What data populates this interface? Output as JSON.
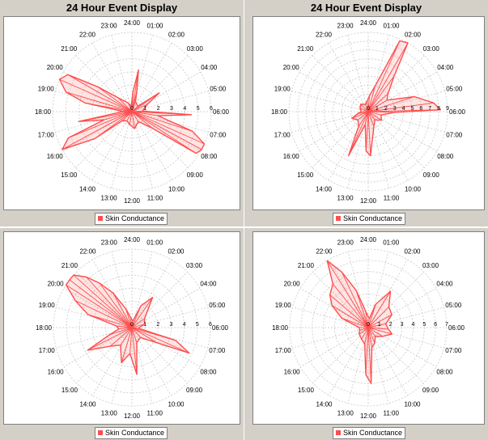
{
  "colors": {
    "series": "#ff4d4d",
    "grid": "#c8c8c8",
    "panel_bg": "#d4d0c8"
  },
  "chart_data": [
    {
      "type": "polar-line",
      "title": "24 Hour Event Display",
      "legend": "bottom",
      "series": [
        {
          "name": "Skin Conductance"
        }
      ],
      "angular_labels": [
        "24:00",
        "01:00",
        "02:00",
        "03:00",
        "04:00",
        "05:00",
        "06:00",
        "07:00",
        "08:00",
        "09:00",
        "10:00",
        "11:00",
        "12:00",
        "13:00",
        "14:00",
        "15:00",
        "16:00",
        "17:00",
        "18:00",
        "19:00",
        "20:00",
        "21:00",
        "22:00",
        "23:00"
      ],
      "radial_labels": [
        "0",
        "1",
        "2",
        "3",
        "4",
        "5",
        "6"
      ],
      "rmax": 6,
      "points": [
        [
          0.2,
          1.5
        ],
        [
          0.6,
          3.2
        ],
        [
          0.9,
          1.6
        ],
        [
          1.3,
          0.8
        ],
        [
          3.2,
          0.6
        ],
        [
          3.7,
          2.5
        ],
        [
          4.3,
          1.3
        ],
        [
          5.8,
          0.8
        ],
        [
          6.2,
          4.5
        ],
        [
          6.6,
          2.0
        ],
        [
          7.2,
          4.8
        ],
        [
          7.6,
          6.2
        ],
        [
          7.9,
          6.4
        ],
        [
          8.2,
          5.8
        ],
        [
          8.6,
          2.0
        ],
        [
          9.8,
          0.9
        ],
        [
          11.4,
          1.3
        ],
        [
          12.6,
          1.0
        ],
        [
          13.9,
          0.8
        ],
        [
          15.1,
          1.0
        ],
        [
          15.6,
          3.5
        ],
        [
          16.1,
          7.0
        ],
        [
          16.5,
          5.2
        ],
        [
          16.9,
          2.2
        ],
        [
          17.3,
          4.1
        ],
        [
          17.8,
          0.9
        ],
        [
          18.2,
          0.8
        ],
        [
          18.7,
          3.6
        ],
        [
          19.1,
          5.2
        ],
        [
          19.6,
          6.2
        ],
        [
          20.0,
          5.6
        ],
        [
          20.4,
          3.2
        ],
        [
          21.0,
          1.5
        ],
        [
          22.5,
          0.7
        ],
        [
          23.5,
          0.4
        ]
      ]
    },
    {
      "type": "polar-line",
      "title": "24 Hour Event Display",
      "legend": "bottom",
      "series": [
        {
          "name": "Skin Conductance"
        }
      ],
      "angular_labels": [
        "24:00",
        "01:00",
        "02:00",
        "03:00",
        "04:00",
        "05:00",
        "06:00",
        "07:00",
        "08:00",
        "09:00",
        "10:00",
        "11:00",
        "12:00",
        "13:00",
        "14:00",
        "15:00",
        "16:00",
        "17:00",
        "18:00",
        "19:00",
        "20:00",
        "21:00",
        "22:00",
        "23:00"
      ],
      "radial_labels": [
        "0",
        "1",
        "2",
        "3",
        "4",
        "5",
        "6",
        "7",
        "8",
        "9"
      ],
      "rmax": 9,
      "points": [
        [
          0.3,
          1.8
        ],
        [
          1.0,
          3.0
        ],
        [
          1.6,
          8.8
        ],
        [
          2.0,
          9.2
        ],
        [
          2.4,
          5.0
        ],
        [
          3.2,
          3.0
        ],
        [
          3.9,
          2.5
        ],
        [
          4.8,
          5.5
        ],
        [
          5.5,
          7.5
        ],
        [
          5.9,
          8.2
        ],
        [
          6.1,
          3.0
        ],
        [
          7.0,
          1.5
        ],
        [
          8.2,
          1.8
        ],
        [
          9.4,
          1.2
        ],
        [
          10.6,
          1.8
        ],
        [
          11.8,
          5.0
        ],
        [
          12.2,
          4.5
        ],
        [
          12.9,
          1.5
        ],
        [
          13.6,
          5.5
        ],
        [
          14.2,
          2.0
        ],
        [
          15.4,
          1.5
        ],
        [
          16.5,
          2.0
        ],
        [
          17.3,
          1.2
        ],
        [
          18.0,
          0.8
        ],
        [
          19.5,
          1.0
        ],
        [
          21.0,
          1.2
        ],
        [
          22.6,
          0.9
        ],
        [
          23.6,
          1.2
        ]
      ]
    },
    {
      "type": "polar-line",
      "title": "",
      "legend": "bottom",
      "series": [
        {
          "name": "Skin Conductance"
        }
      ],
      "angular_labels": [
        "24:00",
        "01:00",
        "02:00",
        "03:00",
        "04:00",
        "05:00",
        "06:00",
        "07:00",
        "08:00",
        "09:00",
        "10:00",
        "11:00",
        "12:00",
        "13:00",
        "14:00",
        "15:00",
        "16:00",
        "17:00",
        "18:00",
        "19:00",
        "20:00",
        "21:00",
        "22:00",
        "23:00"
      ],
      "radial_labels": [
        "0",
        "1",
        "2",
        "3",
        "4",
        "5",
        "6"
      ],
      "rmax": 6,
      "points": [
        [
          0.5,
          0.5
        ],
        [
          1.5,
          1.8
        ],
        [
          2.3,
          2.8
        ],
        [
          3.6,
          1.2
        ],
        [
          5.0,
          1.0
        ],
        [
          6.4,
          0.5
        ],
        [
          7.1,
          3.5
        ],
        [
          7.6,
          4.8
        ],
        [
          8.1,
          2.2
        ],
        [
          9.3,
          1.0
        ],
        [
          10.8,
          1.2
        ],
        [
          11.6,
          3.6
        ],
        [
          12.3,
          2.0
        ],
        [
          13.1,
          2.8
        ],
        [
          14.2,
          1.6
        ],
        [
          15.3,
          2.2
        ],
        [
          16.2,
          3.8
        ],
        [
          16.8,
          1.8
        ],
        [
          17.6,
          1.0
        ],
        [
          18.4,
          1.2
        ],
        [
          19.1,
          3.5
        ],
        [
          19.7,
          4.8
        ],
        [
          20.2,
          6.5
        ],
        [
          20.5,
          7.2
        ],
        [
          20.8,
          6.0
        ],
        [
          21.2,
          5.2
        ],
        [
          21.6,
          4.2
        ],
        [
          22.1,
          3.0
        ],
        [
          22.8,
          1.5
        ],
        [
          23.5,
          0.8
        ]
      ]
    },
    {
      "type": "polar-line",
      "title": "",
      "legend": "bottom",
      "series": [
        {
          "name": "Skin Conductance"
        }
      ],
      "angular_labels": [
        "24:00",
        "01:00",
        "02:00",
        "03:00",
        "04:00",
        "05:00",
        "06:00",
        "07:00",
        "08:00",
        "09:00",
        "10:00",
        "11:00",
        "12:00",
        "13:00",
        "14:00",
        "15:00",
        "16:00",
        "17:00",
        "18:00",
        "19:00",
        "20:00",
        "21:00",
        "22:00",
        "23:00"
      ],
      "radial_labels": [
        "0",
        "1",
        "2",
        "3",
        "4",
        "5",
        "6",
        "7"
      ],
      "rmax": 7,
      "points": [
        [
          0.4,
          0.8
        ],
        [
          1.2,
          2.2
        ],
        [
          2.1,
          3.8
        ],
        [
          3.0,
          2.6
        ],
        [
          4.1,
          2.4
        ],
        [
          5.2,
          1.6
        ],
        [
          6.3,
          1.8
        ],
        [
          7.0,
          2.2
        ],
        [
          8.1,
          1.5
        ],
        [
          9.4,
          1.0
        ],
        [
          10.5,
          1.5
        ],
        [
          11.3,
          1.8
        ],
        [
          11.8,
          5.0
        ],
        [
          12.2,
          4.2
        ],
        [
          12.8,
          1.5
        ],
        [
          14.0,
          1.2
        ],
        [
          15.5,
          1.0
        ],
        [
          16.8,
          0.8
        ],
        [
          18.0,
          0.8
        ],
        [
          19.3,
          2.5
        ],
        [
          20.1,
          3.8
        ],
        [
          20.7,
          4.5
        ],
        [
          21.4,
          5.0
        ],
        [
          21.9,
          7.0
        ],
        [
          22.3,
          5.5
        ],
        [
          22.8,
          3.5
        ],
        [
          23.4,
          1.5
        ]
      ]
    }
  ]
}
